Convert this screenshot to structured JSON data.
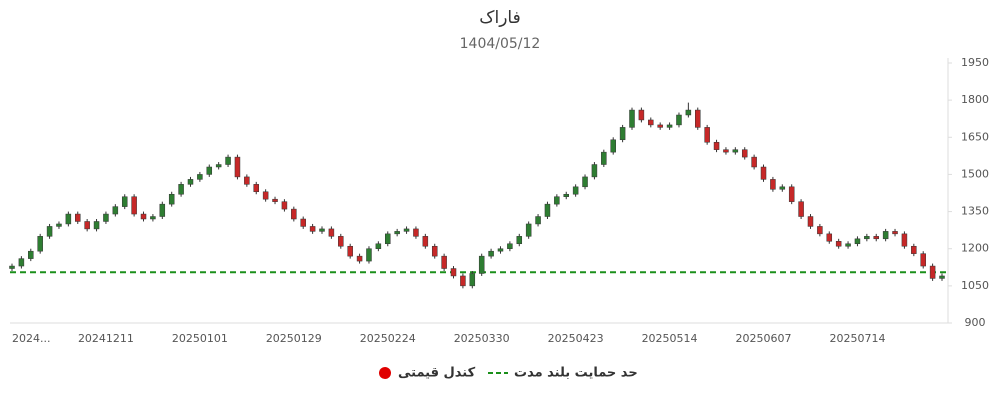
{
  "chart_data": {
    "type": "candlestick",
    "title": "فاراک",
    "subtitle": "1404/05/12",
    "categories": [
      "2024...",
      null,
      null,
      null,
      null,
      null,
      null,
      null,
      null,
      null,
      "20241211",
      null,
      null,
      null,
      null,
      null,
      null,
      null,
      null,
      null,
      "20250101",
      null,
      null,
      null,
      null,
      null,
      null,
      null,
      null,
      null,
      "20250129",
      null,
      null,
      null,
      null,
      null,
      null,
      null,
      null,
      null,
      "20250224",
      null,
      null,
      null,
      null,
      null,
      null,
      null,
      null,
      null,
      "20250330",
      null,
      null,
      null,
      null,
      null,
      null,
      null,
      null,
      null,
      "20250423",
      null,
      null,
      null,
      null,
      null,
      null,
      null,
      null,
      null,
      "20250514",
      null,
      null,
      null,
      null,
      null,
      null,
      null,
      null,
      null,
      "20250607",
      null,
      null,
      null,
      null,
      null,
      null,
      null,
      null,
      null,
      "20250714",
      null,
      null,
      null,
      null,
      null,
      null,
      null,
      null,
      null
    ],
    "candles": {
      "name": "کندل قیمتی",
      "color": "#e00000",
      "up_color": "#2e7d32",
      "down_color": "#c62828",
      "open": [
        1120,
        1130,
        1160,
        1190,
        1250,
        1290,
        1300,
        1340,
        1310,
        1280,
        1310,
        1340,
        1370,
        1410,
        1340,
        1320,
        1330,
        1380,
        1420,
        1460,
        1480,
        1500,
        1530,
        1540,
        1570,
        1490,
        1460,
        1430,
        1400,
        1390,
        1360,
        1320,
        1290,
        1270,
        1280,
        1250,
        1210,
        1170,
        1150,
        1200,
        1220,
        1260,
        1270,
        1280,
        1250,
        1210,
        1170,
        1120,
        1090,
        1050,
        1100,
        1170,
        1190,
        1200,
        1220,
        1250,
        1300,
        1330,
        1380,
        1410,
        1420,
        1450,
        1490,
        1540,
        1590,
        1640,
        1690,
        1760,
        1720,
        1700,
        1690,
        1700,
        1740,
        1760,
        1690,
        1630,
        1600,
        1590,
        1600,
        1570,
        1530,
        1480,
        1440,
        1450,
        1390,
        1330,
        1290,
        1260,
        1230,
        1210,
        1220,
        1240,
        1250,
        1240,
        1270,
        1260,
        1210,
        1180,
        1130,
        1080
      ],
      "high": [
        1140,
        1170,
        1200,
        1260,
        1300,
        1310,
        1350,
        1350,
        1320,
        1320,
        1350,
        1380,
        1420,
        1420,
        1350,
        1340,
        1390,
        1430,
        1470,
        1490,
        1510,
        1540,
        1550,
        1580,
        1580,
        1500,
        1470,
        1440,
        1410,
        1400,
        1370,
        1330,
        1300,
        1290,
        1290,
        1260,
        1220,
        1180,
        1210,
        1230,
        1270,
        1280,
        1290,
        1290,
        1260,
        1220,
        1180,
        1130,
        1100,
        1110,
        1180,
        1200,
        1210,
        1230,
        1260,
        1310,
        1340,
        1390,
        1420,
        1430,
        1460,
        1500,
        1550,
        1600,
        1650,
        1700,
        1770,
        1770,
        1730,
        1710,
        1710,
        1750,
        1790,
        1770,
        1700,
        1640,
        1610,
        1610,
        1610,
        1580,
        1540,
        1490,
        1460,
        1460,
        1400,
        1340,
        1300,
        1270,
        1240,
        1230,
        1250,
        1260,
        1260,
        1280,
        1280,
        1270,
        1220,
        1190,
        1140,
        1100
      ],
      "low": [
        1110,
        1120,
        1150,
        1180,
        1240,
        1280,
        1290,
        1300,
        1270,
        1270,
        1300,
        1330,
        1360,
        1330,
        1310,
        1310,
        1320,
        1370,
        1410,
        1450,
        1470,
        1490,
        1520,
        1530,
        1480,
        1450,
        1420,
        1390,
        1380,
        1350,
        1310,
        1280,
        1260,
        1260,
        1240,
        1200,
        1160,
        1140,
        1140,
        1190,
        1210,
        1250,
        1260,
        1240,
        1200,
        1160,
        1110,
        1080,
        1040,
        1040,
        1090,
        1160,
        1180,
        1190,
        1210,
        1240,
        1290,
        1320,
        1370,
        1400,
        1410,
        1440,
        1480,
        1530,
        1580,
        1630,
        1680,
        1710,
        1690,
        1680,
        1680,
        1690,
        1730,
        1680,
        1620,
        1590,
        1580,
        1580,
        1560,
        1520,
        1470,
        1430,
        1430,
        1380,
        1320,
        1280,
        1250,
        1220,
        1200,
        1200,
        1210,
        1230,
        1230,
        1230,
        1250,
        1200,
        1170,
        1120,
        1070,
        1070
      ],
      "close": [
        1130,
        1160,
        1190,
        1250,
        1290,
        1300,
        1340,
        1310,
        1280,
        1310,
        1340,
        1370,
        1410,
        1340,
        1320,
        1330,
        1380,
        1420,
        1460,
        1480,
        1500,
        1530,
        1540,
        1570,
        1490,
        1460,
        1430,
        1400,
        1390,
        1360,
        1320,
        1290,
        1270,
        1280,
        1250,
        1210,
        1170,
        1150,
        1200,
        1220,
        1260,
        1270,
        1280,
        1250,
        1210,
        1170,
        1120,
        1090,
        1050,
        1100,
        1170,
        1190,
        1200,
        1220,
        1250,
        1300,
        1330,
        1380,
        1410,
        1420,
        1450,
        1490,
        1540,
        1590,
        1640,
        1690,
        1760,
        1720,
        1700,
        1690,
        1700,
        1740,
        1760,
        1690,
        1630,
        1600,
        1590,
        1600,
        1570,
        1530,
        1480,
        1440,
        1450,
        1390,
        1330,
        1290,
        1260,
        1230,
        1210,
        1220,
        1240,
        1250,
        1240,
        1270,
        1260,
        1210,
        1180,
        1130,
        1080,
        1090
      ]
    },
    "support": {
      "name": "حد حمایت بلند مدت",
      "value": 1105,
      "color": "#1a8f1a"
    },
    "ylim": [
      900,
      1950
    ],
    "yticks": [
      900,
      1050,
      1200,
      1350,
      1500,
      1650,
      1800,
      1950
    ],
    "grid": false
  }
}
